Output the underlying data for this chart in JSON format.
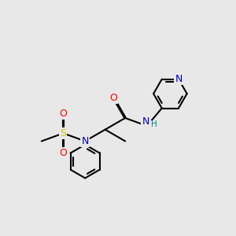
{
  "background_color": "#e8e8e8",
  "atom_colors": {
    "C": "#000000",
    "N": "#0000cc",
    "O": "#ff0000",
    "S": "#cccc00",
    "H": "#008080"
  },
  "bond_color": "#000000",
  "bond_width": 1.5,
  "figsize": [
    3.0,
    3.0
  ],
  "dpi": 100
}
